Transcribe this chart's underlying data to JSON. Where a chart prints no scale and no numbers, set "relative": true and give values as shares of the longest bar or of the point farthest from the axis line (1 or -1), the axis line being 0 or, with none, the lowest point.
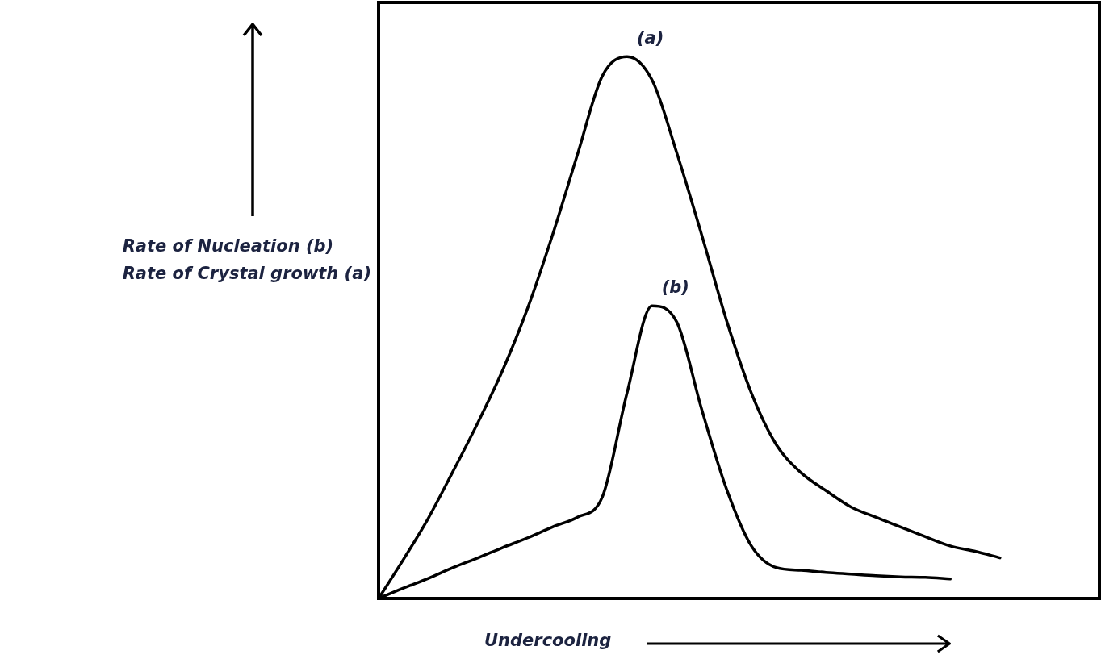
{
  "chart_data": {
    "type": "line",
    "relative": true,
    "xlabel": "Undercooling",
    "ylabel": "Rate of Nucleation (b)\nRate of Crystal growth (a)",
    "categories": [
      null,
      null,
      null,
      null,
      null,
      null,
      null,
      null,
      null,
      null,
      null,
      null,
      null,
      null,
      null,
      null,
      null,
      null,
      null,
      null,
      null,
      null,
      null,
      null,
      null,
      null,
      null,
      null,
      null,
      null
    ],
    "series": [
      {
        "name": "(a)",
        "color": "#000000",
        "values": [
          0,
          0.072,
          0.148,
          0.235,
          0.325,
          0.422,
          0.536,
          0.671,
          0.819,
          0.964,
          1,
          0.957,
          0.822,
          0.671,
          0.513,
          0.379,
          0.284,
          0.232,
          0.199,
          0.169,
          0.15,
          0.132,
          0.114,
          0.097,
          0.087,
          0.075,
          null,
          null,
          null,
          null
        ]
      },
      {
        "name": "(b)",
        "color": "#000000",
        "values": [
          0,
          0.019,
          0.037,
          0.057,
          0.075,
          0.094,
          0.112,
          0.132,
          0.15,
          0.187,
          0.38,
          0.54,
          0.51,
          0.349,
          0.202,
          0.097,
          0.057,
          0.052,
          0.048,
          0.045,
          0.042,
          0.04,
          0.039,
          0.036,
          null,
          null,
          null,
          null,
          null,
          null
        ]
      }
    ],
    "marker": "none",
    "line_style": "solid",
    "legend": false,
    "grid": false,
    "tick_labels": false
  }
}
